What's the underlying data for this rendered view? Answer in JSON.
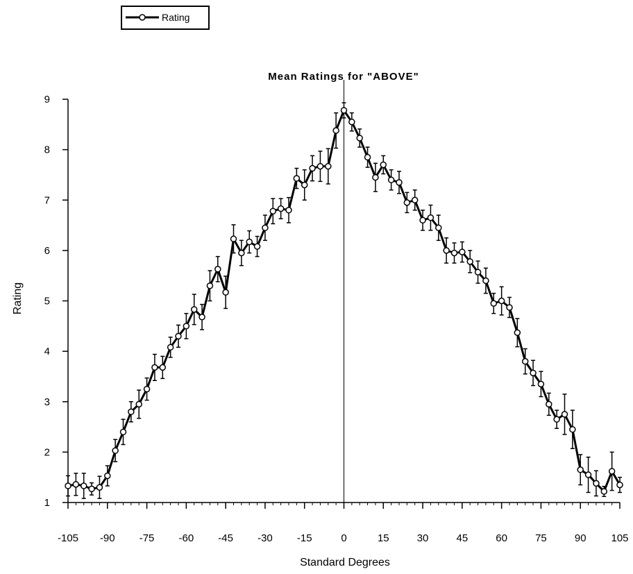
{
  "chart_data": {
    "type": "line",
    "title": "Mean Ratings for \"ABOVE\"",
    "xlabel": "Standard Degrees",
    "ylabel": "Rating",
    "xlim": [
      -105,
      105
    ],
    "ylim": [
      1,
      9
    ],
    "x_ticks": [
      -105,
      -90,
      -75,
      -60,
      -45,
      -30,
      -15,
      0,
      15,
      30,
      45,
      60,
      75,
      90,
      105
    ],
    "y_ticks": [
      1,
      2,
      3,
      4,
      5,
      6,
      7,
      8,
      9
    ],
    "grid": false,
    "legend_position": "top-left",
    "error_bars": true,
    "series": [
      {
        "name": "Rating",
        "color": "#000000",
        "marker": "open-circle",
        "points": [
          {
            "x": -105,
            "y": 1.33,
            "err": 0.2
          },
          {
            "x": -102,
            "y": 1.36,
            "err": 0.22
          },
          {
            "x": -99,
            "y": 1.33,
            "err": 0.25
          },
          {
            "x": -96,
            "y": 1.27,
            "err": 0.12
          },
          {
            "x": -93,
            "y": 1.3,
            "err": 0.22
          },
          {
            "x": -90,
            "y": 1.53,
            "err": 0.2
          },
          {
            "x": -87,
            "y": 2.03,
            "err": 0.22
          },
          {
            "x": -84,
            "y": 2.4,
            "err": 0.25
          },
          {
            "x": -81,
            "y": 2.8,
            "err": 0.2
          },
          {
            "x": -78,
            "y": 2.95,
            "err": 0.28
          },
          {
            "x": -75,
            "y": 3.25,
            "err": 0.22
          },
          {
            "x": -72,
            "y": 3.68,
            "err": 0.26
          },
          {
            "x": -69,
            "y": 3.68,
            "err": 0.22
          },
          {
            "x": -66,
            "y": 4.08,
            "err": 0.2
          },
          {
            "x": -63,
            "y": 4.3,
            "err": 0.22
          },
          {
            "x": -60,
            "y": 4.5,
            "err": 0.25
          },
          {
            "x": -57,
            "y": 4.83,
            "err": 0.3
          },
          {
            "x": -54,
            "y": 4.68,
            "err": 0.25
          },
          {
            "x": -51,
            "y": 5.3,
            "err": 0.3
          },
          {
            "x": -48,
            "y": 5.63,
            "err": 0.25
          },
          {
            "x": -45,
            "y": 5.17,
            "err": 0.32
          },
          {
            "x": -42,
            "y": 6.23,
            "err": 0.28
          },
          {
            "x": -39,
            "y": 5.95,
            "err": 0.25
          },
          {
            "x": -36,
            "y": 6.17,
            "err": 0.22
          },
          {
            "x": -33,
            "y": 6.08,
            "err": 0.2
          },
          {
            "x": -30,
            "y": 6.45,
            "err": 0.25
          },
          {
            "x": -27,
            "y": 6.78,
            "err": 0.25
          },
          {
            "x": -24,
            "y": 6.83,
            "err": 0.2
          },
          {
            "x": -21,
            "y": 6.8,
            "err": 0.25
          },
          {
            "x": -18,
            "y": 7.43,
            "err": 0.2
          },
          {
            "x": -15,
            "y": 7.3,
            "err": 0.3
          },
          {
            "x": -12,
            "y": 7.63,
            "err": 0.25
          },
          {
            "x": -9,
            "y": 7.67,
            "err": 0.3
          },
          {
            "x": -6,
            "y": 7.67,
            "err": 0.35
          },
          {
            "x": -3,
            "y": 8.38,
            "err": 0.35
          },
          {
            "x": 0,
            "y": 8.78,
            "err": 0.15
          },
          {
            "x": 3,
            "y": 8.55,
            "err": 0.18
          },
          {
            "x": 6,
            "y": 8.23,
            "err": 0.18
          },
          {
            "x": 9,
            "y": 7.85,
            "err": 0.2
          },
          {
            "x": 12,
            "y": 7.45,
            "err": 0.28
          },
          {
            "x": 15,
            "y": 7.7,
            "err": 0.18
          },
          {
            "x": 18,
            "y": 7.4,
            "err": 0.2
          },
          {
            "x": 21,
            "y": 7.35,
            "err": 0.22
          },
          {
            "x": 24,
            "y": 6.95,
            "err": 0.2
          },
          {
            "x": 27,
            "y": 7.0,
            "err": 0.2
          },
          {
            "x": 30,
            "y": 6.6,
            "err": 0.2
          },
          {
            "x": 33,
            "y": 6.65,
            "err": 0.25
          },
          {
            "x": 36,
            "y": 6.45,
            "err": 0.25
          },
          {
            "x": 39,
            "y": 6.0,
            "err": 0.25
          },
          {
            "x": 42,
            "y": 5.95,
            "err": 0.2
          },
          {
            "x": 45,
            "y": 5.97,
            "err": 0.2
          },
          {
            "x": 48,
            "y": 5.78,
            "err": 0.22
          },
          {
            "x": 51,
            "y": 5.57,
            "err": 0.22
          },
          {
            "x": 54,
            "y": 5.4,
            "err": 0.25
          },
          {
            "x": 57,
            "y": 4.95,
            "err": 0.2
          },
          {
            "x": 60,
            "y": 5.0,
            "err": 0.28
          },
          {
            "x": 63,
            "y": 4.87,
            "err": 0.2
          },
          {
            "x": 66,
            "y": 4.37,
            "err": 0.28
          },
          {
            "x": 69,
            "y": 3.8,
            "err": 0.25
          },
          {
            "x": 72,
            "y": 3.57,
            "err": 0.25
          },
          {
            "x": 75,
            "y": 3.35,
            "err": 0.25
          },
          {
            "x": 78,
            "y": 2.95,
            "err": 0.22
          },
          {
            "x": 81,
            "y": 2.65,
            "err": 0.18
          },
          {
            "x": 84,
            "y": 2.75,
            "err": 0.4
          },
          {
            "x": 87,
            "y": 2.45,
            "err": 0.38
          },
          {
            "x": 90,
            "y": 1.65,
            "err": 0.3
          },
          {
            "x": 93,
            "y": 1.55,
            "err": 0.35
          },
          {
            "x": 96,
            "y": 1.38,
            "err": 0.25
          },
          {
            "x": 99,
            "y": 1.22,
            "err": 0.1
          },
          {
            "x": 102,
            "y": 1.62,
            "err": 0.38
          },
          {
            "x": 105,
            "y": 1.35,
            "err": 0.15
          }
        ]
      }
    ]
  },
  "legend": {
    "items": [
      {
        "label": "Rating"
      }
    ]
  }
}
